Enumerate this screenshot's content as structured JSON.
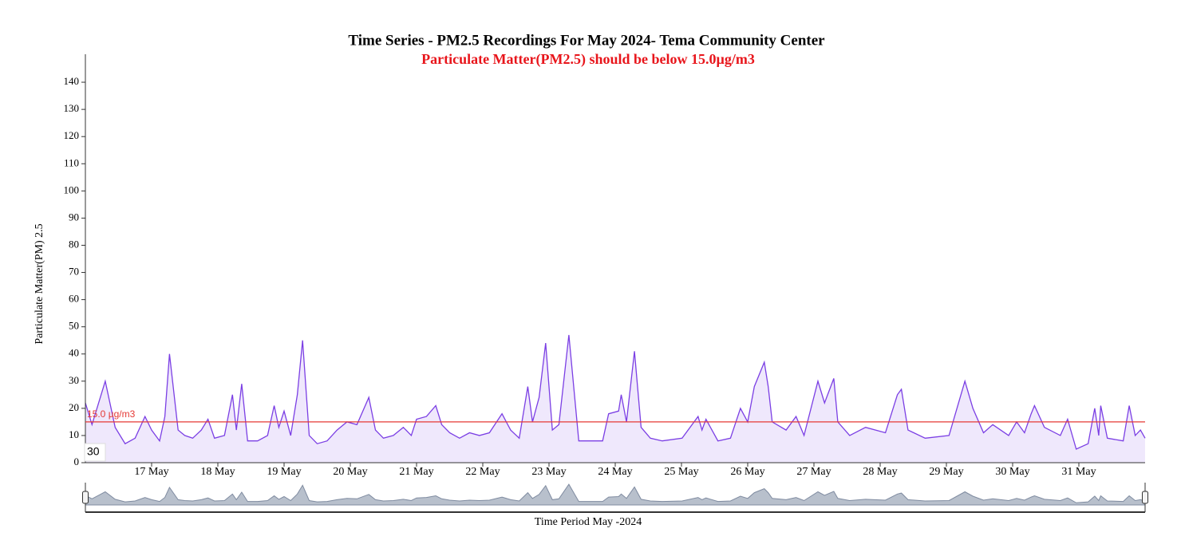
{
  "chart_data": {
    "type": "line",
    "title": "Time Series - PM2.5 Recordings For May 2024- Tema Community Center",
    "subtitle": "Particulate Matter(PM2.5) should be below 15.0µg/m3",
    "x_label": "Time Period May -2024",
    "y_label": "Particulate Matter(PM) 2.5",
    "badge": "30",
    "threshold": {
      "value": 15,
      "label": "15.0 µg/m3",
      "color": "#e53935"
    },
    "color": "#7b3fe4",
    "fill": "#efe8fc",
    "xlim": [
      16,
      32
    ],
    "ylim": [
      0,
      150
    ],
    "xticks": [
      {
        "value": 17,
        "label": "17 May"
      },
      {
        "value": 18,
        "label": "18 May"
      },
      {
        "value": 19,
        "label": "19 May"
      },
      {
        "value": 20,
        "label": "20 May"
      },
      {
        "value": 21,
        "label": "21 May"
      },
      {
        "value": 22,
        "label": "22 May"
      },
      {
        "value": 23,
        "label": "23 May"
      },
      {
        "value": 24,
        "label": "24 May"
      },
      {
        "value": 25,
        "label": "25 May"
      },
      {
        "value": 26,
        "label": "26 May"
      },
      {
        "value": 27,
        "label": "27 May"
      },
      {
        "value": 28,
        "label": "28 May"
      },
      {
        "value": 29,
        "label": "29 May"
      },
      {
        "value": 30,
        "label": "30 May"
      },
      {
        "value": 31,
        "label": "31 May"
      }
    ],
    "yticks": [
      0,
      10,
      20,
      30,
      40,
      50,
      60,
      70,
      80,
      90,
      100,
      110,
      120,
      130,
      140
    ],
    "x": [
      16.0,
      16.1,
      16.3,
      16.45,
      16.6,
      16.75,
      16.9,
      17.0,
      17.12,
      17.2,
      17.27,
      17.4,
      17.5,
      17.62,
      17.75,
      17.85,
      17.95,
      18.1,
      18.22,
      18.28,
      18.36,
      18.45,
      18.6,
      18.75,
      18.85,
      18.92,
      19.0,
      19.1,
      19.2,
      19.28,
      19.38,
      19.5,
      19.65,
      19.8,
      19.95,
      20.1,
      20.28,
      20.38,
      20.5,
      20.65,
      20.8,
      20.92,
      21.0,
      21.15,
      21.29,
      21.38,
      21.5,
      21.65,
      21.8,
      21.95,
      22.1,
      22.29,
      22.42,
      22.55,
      22.68,
      22.75,
      22.85,
      22.95,
      23.05,
      23.15,
      23.3,
      23.45,
      23.6,
      23.81,
      23.9,
      24.05,
      24.09,
      24.17,
      24.29,
      24.39,
      24.53,
      24.71,
      25.01,
      25.25,
      25.31,
      25.37,
      25.55,
      25.74,
      25.89,
      26.0,
      26.1,
      26.25,
      26.31,
      26.37,
      26.58,
      26.73,
      26.85,
      27.06,
      27.16,
      27.3,
      27.36,
      27.54,
      27.78,
      28.08,
      28.26,
      28.32,
      28.42,
      28.68,
      29.04,
      29.28,
      29.4,
      29.56,
      29.7,
      29.94,
      30.06,
      30.18,
      30.28,
      30.33,
      30.48,
      30.72,
      30.83,
      30.96,
      31.14,
      31.24,
      31.3,
      31.33,
      31.43,
      31.67,
      31.76,
      31.85,
      31.93,
      32.0
    ],
    "values": [
      22,
      14,
      30,
      13,
      7,
      9,
      17,
      12,
      8,
      17,
      40,
      12,
      10,
      9,
      12,
      16,
      9,
      10,
      25,
      12,
      29,
      8,
      8,
      10,
      21,
      13,
      19,
      10,
      25,
      45,
      10,
      7,
      8,
      12,
      15,
      14,
      24,
      12,
      9,
      10,
      13,
      10,
      16,
      17,
      21,
      14,
      11,
      9,
      11,
      10,
      11,
      18,
      12,
      9,
      28,
      15,
      24,
      44,
      12,
      14,
      47,
      8,
      8,
      8,
      18,
      19,
      25,
      15,
      41,
      13,
      9,
      8,
      9,
      17,
      12,
      16,
      8,
      9,
      20,
      15,
      28,
      37,
      28,
      15,
      12,
      17,
      10,
      30,
      22,
      31,
      15,
      10,
      13,
      11,
      25,
      27,
      12,
      9,
      10,
      30,
      20,
      11,
      14,
      10,
      15,
      11,
      18,
      21,
      13,
      10,
      16,
      5,
      7,
      20,
      10,
      21,
      9,
      8,
      21,
      10,
      12,
      9
    ]
  }
}
